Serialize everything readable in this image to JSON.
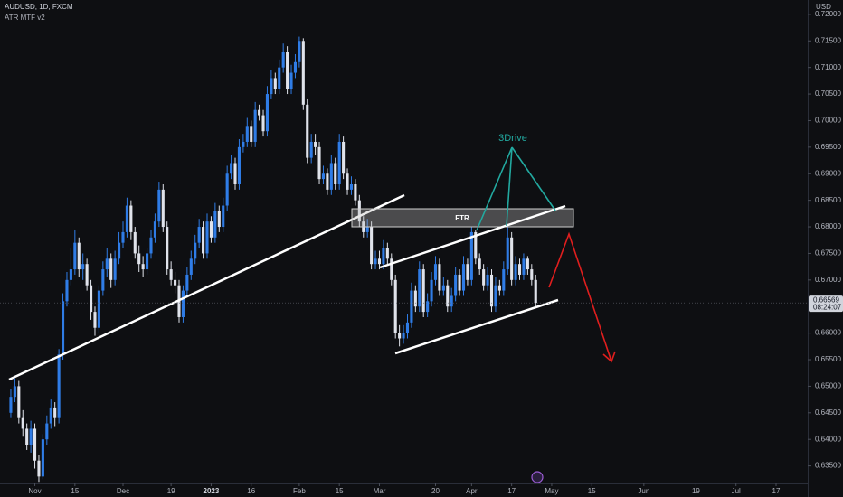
{
  "chart_data": {
    "type": "candlestick",
    "title": "AUDUSD, 1D, FXCM",
    "subtitle": "ATR MTF v2",
    "currency": "USD",
    "bull_color": "#2f7ce6",
    "bear_color": "#e0e3eb",
    "x": [
      0,
      1,
      2,
      3,
      4,
      5,
      6,
      7,
      8,
      9,
      10,
      11,
      12,
      13,
      14,
      15,
      16,
      17,
      18,
      19,
      20,
      21,
      22,
      23,
      24,
      25,
      26,
      27,
      28,
      29,
      30,
      31,
      32,
      33,
      34,
      35,
      36,
      37,
      38,
      39,
      40,
      41,
      42,
      43,
      44,
      45,
      46,
      47,
      48,
      49,
      50,
      51,
      52,
      53,
      54,
      55,
      56,
      57,
      58,
      59,
      60,
      61,
      62,
      63,
      64,
      65,
      66,
      67,
      68,
      69,
      70,
      71,
      72,
      73,
      74,
      75,
      76,
      77,
      78,
      79,
      80,
      81,
      82,
      83,
      84,
      85,
      86,
      87,
      88,
      89,
      90,
      91,
      92,
      93,
      94,
      95,
      96,
      97,
      98,
      99,
      100,
      101,
      102,
      103,
      104,
      105,
      106,
      107,
      108,
      109,
      110,
      111,
      112,
      113,
      114,
      115,
      116,
      117,
      118,
      119,
      120,
      121,
      122,
      123,
      124,
      125,
      126,
      127,
      128,
      129,
      130,
      131
    ],
    "open": [
      0.645,
      0.648,
      0.65,
      0.644,
      0.642,
      0.639,
      0.642,
      0.636,
      0.633,
      0.64,
      0.643,
      0.646,
      0.644,
      0.656,
      0.666,
      0.67,
      0.672,
      0.677,
      0.672,
      0.673,
      0.669,
      0.664,
      0.661,
      0.668,
      0.672,
      0.674,
      0.67,
      0.674,
      0.677,
      0.679,
      0.684,
      0.679,
      0.675,
      0.673,
      0.672,
      0.675,
      0.678,
      0.681,
      0.687,
      0.68,
      0.672,
      0.67,
      0.669,
      0.663,
      0.668,
      0.671,
      0.674,
      0.677,
      0.68,
      0.675,
      0.681,
      0.678,
      0.683,
      0.68,
      0.684,
      0.69,
      0.692,
      0.688,
      0.695,
      0.696,
      0.699,
      0.696,
      0.702,
      0.701,
      0.698,
      0.705,
      0.708,
      0.706,
      0.71,
      0.713,
      0.706,
      0.709,
      0.711,
      0.715,
      0.703,
      0.693,
      0.696,
      0.695,
      0.689,
      0.69,
      0.687,
      0.692,
      0.688,
      0.696,
      0.69,
      0.687,
      0.688,
      0.685,
      0.681,
      0.679,
      0.68,
      0.673,
      0.674,
      0.673,
      0.676,
      0.674,
      0.67,
      0.66,
      0.659,
      0.66,
      0.662,
      0.668,
      0.665,
      0.672,
      0.664,
      0.666,
      0.67,
      0.673,
      0.668,
      0.669,
      0.665,
      0.667,
      0.671,
      0.668,
      0.673,
      0.67,
      0.679,
      0.674,
      0.672,
      0.669,
      0.671,
      0.665,
      0.669,
      0.668,
      0.672,
      0.678,
      0.67,
      0.673,
      0.671,
      0.674,
      0.672,
      0.67
    ],
    "high": [
      0.6495,
      0.6515,
      0.651,
      0.6455,
      0.643,
      0.6435,
      0.643,
      0.637,
      0.641,
      0.6445,
      0.6475,
      0.647,
      0.657,
      0.6675,
      0.6715,
      0.676,
      0.6795,
      0.678,
      0.675,
      0.674,
      0.67,
      0.665,
      0.669,
      0.6735,
      0.676,
      0.675,
      0.6755,
      0.679,
      0.681,
      0.6855,
      0.685,
      0.68,
      0.6765,
      0.6745,
      0.676,
      0.6795,
      0.6825,
      0.6885,
      0.688,
      0.681,
      0.6735,
      0.6715,
      0.67,
      0.669,
      0.6725,
      0.6755,
      0.6785,
      0.6815,
      0.681,
      0.6825,
      0.682,
      0.6845,
      0.684,
      0.6855,
      0.6915,
      0.6935,
      0.693,
      0.6965,
      0.6975,
      0.7005,
      0.7,
      0.7035,
      0.703,
      0.702,
      0.7065,
      0.7095,
      0.709,
      0.7115,
      0.7145,
      0.714,
      0.7105,
      0.7125,
      0.7158,
      0.7155,
      0.704,
      0.6975,
      0.6975,
      0.696,
      0.6915,
      0.691,
      0.6935,
      0.693,
      0.6975,
      0.697,
      0.691,
      0.6895,
      0.689,
      0.686,
      0.682,
      0.6815,
      0.681,
      0.6755,
      0.6755,
      0.6775,
      0.677,
      0.675,
      0.671,
      0.6615,
      0.6615,
      0.6635,
      0.6695,
      0.669,
      0.6735,
      0.673,
      0.6675,
      0.6715,
      0.6745,
      0.674,
      0.6705,
      0.67,
      0.6685,
      0.6725,
      0.672,
      0.6745,
      0.674,
      0.68,
      0.6795,
      0.675,
      0.673,
      0.6725,
      0.672,
      0.6705,
      0.67,
      0.6735,
      0.6805,
      0.679,
      0.6745,
      0.674,
      0.675,
      0.6745,
      0.673,
      0.671
    ],
    "low": [
      0.644,
      0.647,
      0.643,
      0.6405,
      0.638,
      0.6375,
      0.6345,
      0.632,
      0.6325,
      0.639,
      0.642,
      0.6425,
      0.643,
      0.655,
      0.665,
      0.669,
      0.671,
      0.6705,
      0.67,
      0.668,
      0.6625,
      0.6595,
      0.66,
      0.667,
      0.6705,
      0.6685,
      0.669,
      0.673,
      0.676,
      0.678,
      0.6775,
      0.674,
      0.6715,
      0.6705,
      0.671,
      0.674,
      0.677,
      0.68,
      0.679,
      0.671,
      0.669,
      0.6675,
      0.662,
      0.662,
      0.667,
      0.67,
      0.673,
      0.676,
      0.674,
      0.674,
      0.677,
      0.677,
      0.679,
      0.679,
      0.683,
      0.689,
      0.687,
      0.687,
      0.694,
      0.695,
      0.695,
      0.695,
      0.7,
      0.697,
      0.697,
      0.704,
      0.705,
      0.705,
      0.709,
      0.705,
      0.705,
      0.708,
      0.71,
      0.702,
      0.692,
      0.692,
      0.6935,
      0.688,
      0.688,
      0.686,
      0.686,
      0.687,
      0.687,
      0.689,
      0.686,
      0.686,
      0.684,
      0.68,
      0.678,
      0.678,
      0.672,
      0.672,
      0.672,
      0.672,
      0.673,
      0.669,
      0.659,
      0.6575,
      0.658,
      0.659,
      0.661,
      0.664,
      0.664,
      0.663,
      0.663,
      0.665,
      0.669,
      0.667,
      0.667,
      0.664,
      0.664,
      0.666,
      0.667,
      0.667,
      0.669,
      0.669,
      0.673,
      0.671,
      0.668,
      0.668,
      0.664,
      0.664,
      0.667,
      0.667,
      0.671,
      0.669,
      0.669,
      0.67,
      0.67,
      0.671,
      0.669,
      0.665
    ],
    "close": [
      0.648,
      0.65,
      0.644,
      0.642,
      0.639,
      0.642,
      0.636,
      0.633,
      0.64,
      0.643,
      0.646,
      0.644,
      0.656,
      0.666,
      0.67,
      0.672,
      0.677,
      0.672,
      0.673,
      0.669,
      0.664,
      0.661,
      0.668,
      0.672,
      0.674,
      0.67,
      0.674,
      0.677,
      0.679,
      0.684,
      0.679,
      0.675,
      0.673,
      0.672,
      0.675,
      0.678,
      0.681,
      0.687,
      0.68,
      0.672,
      0.67,
      0.669,
      0.663,
      0.668,
      0.671,
      0.674,
      0.677,
      0.68,
      0.675,
      0.681,
      0.678,
      0.683,
      0.68,
      0.684,
      0.69,
      0.692,
      0.688,
      0.695,
      0.696,
      0.699,
      0.696,
      0.702,
      0.701,
      0.698,
      0.705,
      0.708,
      0.706,
      0.71,
      0.713,
      0.706,
      0.709,
      0.711,
      0.715,
      0.703,
      0.693,
      0.696,
      0.695,
      0.689,
      0.69,
      0.687,
      0.692,
      0.688,
      0.696,
      0.69,
      0.687,
      0.688,
      0.685,
      0.681,
      0.679,
      0.68,
      0.673,
      0.674,
      0.673,
      0.676,
      0.674,
      0.67,
      0.66,
      0.659,
      0.66,
      0.662,
      0.668,
      0.665,
      0.672,
      0.664,
      0.666,
      0.67,
      0.673,
      0.668,
      0.669,
      0.665,
      0.667,
      0.671,
      0.668,
      0.673,
      0.67,
      0.679,
      0.674,
      0.672,
      0.669,
      0.671,
      0.665,
      0.669,
      0.668,
      0.672,
      0.678,
      0.67,
      0.673,
      0.671,
      0.674,
      0.672,
      0.67,
      0.66569
    ],
    "xlim": [
      -2.7,
      198.9
    ],
    "ylim": [
      0.6317,
      0.7227
    ],
    "xticks": [
      {
        "value": 6,
        "label": "Nov"
      },
      {
        "value": 16,
        "label": "15"
      },
      {
        "value": 28,
        "label": "Dec"
      },
      {
        "value": 40,
        "label": "19"
      },
      {
        "value": 50,
        "label": "2023"
      },
      {
        "value": 60,
        "label": "16"
      },
      {
        "value": 72,
        "label": "Feb"
      },
      {
        "value": 82,
        "label": "15"
      },
      {
        "value": 92,
        "label": "Mar"
      },
      {
        "value": 106,
        "label": "20"
      },
      {
        "value": 115,
        "label": "Apr"
      },
      {
        "value": 125,
        "label": "17"
      },
      {
        "value": 135,
        "label": "May"
      },
      {
        "value": 145,
        "label": "15"
      },
      {
        "value": 158,
        "label": "Jun"
      },
      {
        "value": 171,
        "label": "19"
      },
      {
        "value": 181,
        "label": "Jul"
      },
      {
        "value": 191,
        "label": "17"
      }
    ],
    "yticks": [
      {
        "value": 0.635,
        "label": "0.63500"
      },
      {
        "value": 0.64,
        "label": "0.64000"
      },
      {
        "value": 0.645,
        "label": "0.64500"
      },
      {
        "value": 0.65,
        "label": "0.65000"
      },
      {
        "value": 0.655,
        "label": "0.65500"
      },
      {
        "value": 0.66,
        "label": "0.66000"
      },
      {
        "value": 0.67,
        "label": "0.67000"
      },
      {
        "value": 0.675,
        "label": "0.67500"
      },
      {
        "value": 0.68,
        "label": "0.68000"
      },
      {
        "value": 0.685,
        "label": "0.68500"
      },
      {
        "value": 0.69,
        "label": "0.69000"
      },
      {
        "value": 0.695,
        "label": "0.69500"
      },
      {
        "value": 0.7,
        "label": "0.70000"
      },
      {
        "value": 0.705,
        "label": "0.70500"
      },
      {
        "value": 0.71,
        "label": "0.71000"
      },
      {
        "value": 0.715,
        "label": "0.71500"
      },
      {
        "value": 0.72,
        "label": "0.72000"
      }
    ],
    "last_price": {
      "value": 0.66569,
      "label": "0.66569"
    },
    "countdown": "08:24:07",
    "annotations": {
      "zone": "FTR",
      "pattern": "3Drive"
    }
  }
}
